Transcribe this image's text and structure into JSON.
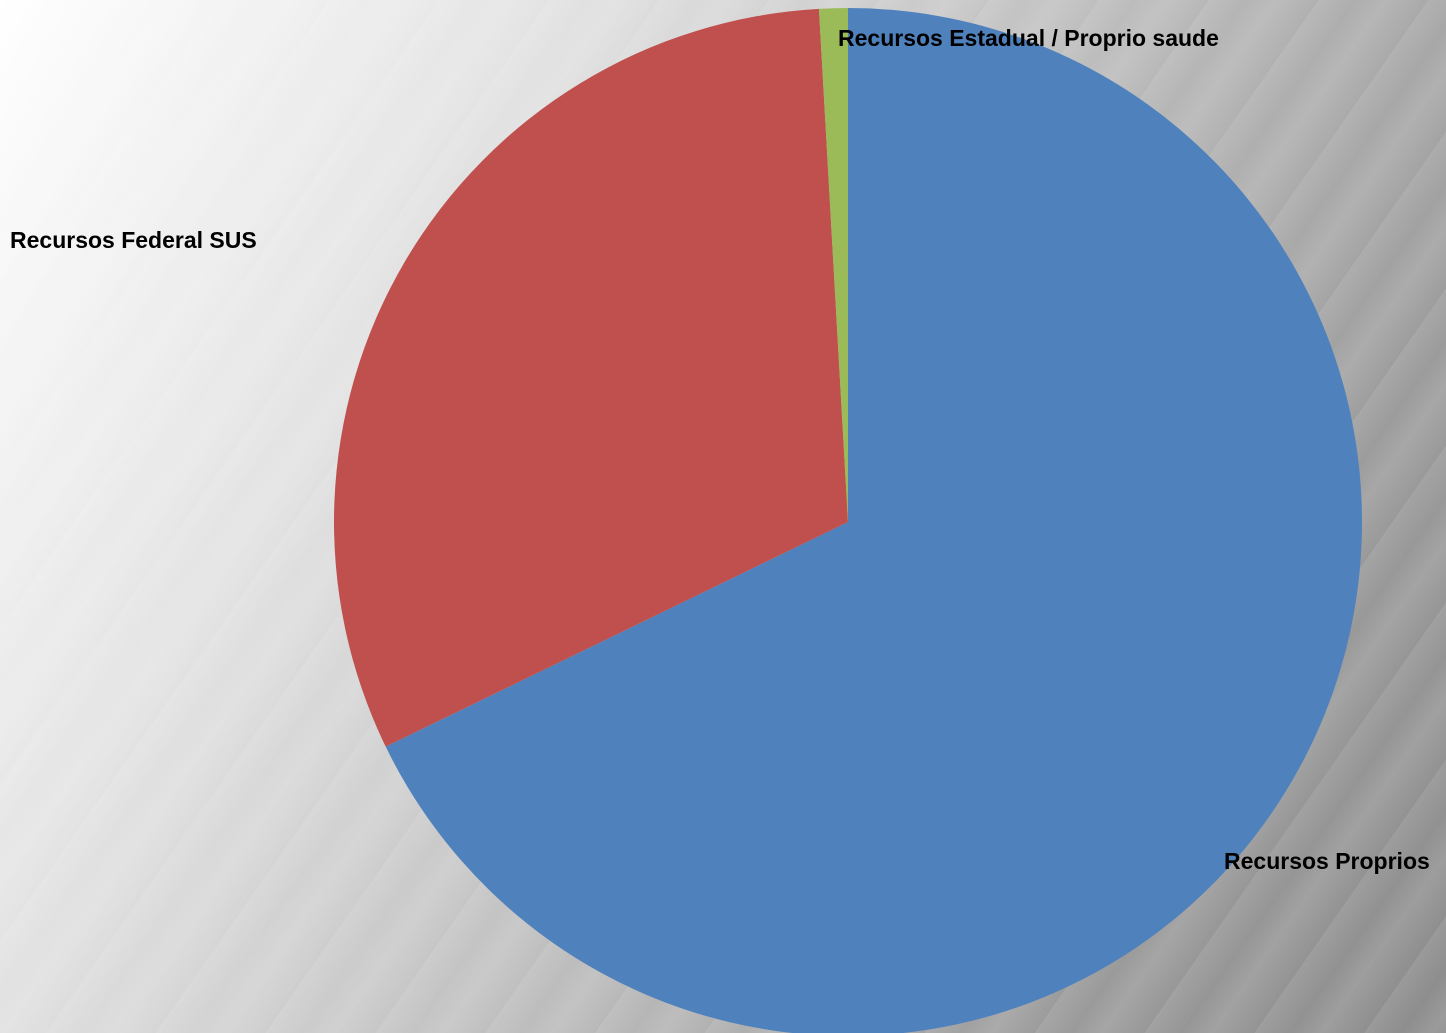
{
  "chart_data": {
    "type": "pie",
    "title": "",
    "start_angle_deg": 0,
    "direction": "clockwise",
    "slices": [
      {
        "label": "Recursos Proprios",
        "value": 67.8,
        "color": "#4f81bd"
      },
      {
        "label": "Recursos Federal SUS",
        "value": 31.3,
        "color": "#c0504d"
      },
      {
        "label": "Recursos Estadual / Proprio saude",
        "value": 0.9,
        "color": "#9bbb59"
      }
    ],
    "legend": "none",
    "data_labels": "category names"
  }
}
